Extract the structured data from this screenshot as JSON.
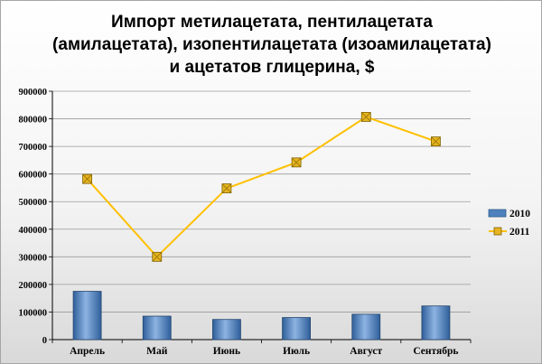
{
  "chart_data": {
    "type": "bar+line",
    "title": [
      "Импорт метилацетата, пентилацетата",
      "(амилацетата), изопентилацетата (изоамилацетата)",
      "и ацетатов глицерина, $"
    ],
    "categories": [
      "Апрель",
      "Май",
      "Июнь",
      "Июль",
      "Август",
      "Сентябрь"
    ],
    "series": [
      {
        "name": "2010",
        "type": "bar",
        "color": "#4f81bd",
        "values": [
          175000,
          85000,
          73000,
          80000,
          92000,
          122000
        ]
      },
      {
        "name": "2011",
        "type": "line",
        "color": "#ffc000",
        "marker_color": "#d4a017",
        "values": [
          582000,
          300000,
          548000,
          642000,
          807000,
          718000
        ]
      }
    ],
    "y_ticks": [
      "0",
      "100000",
      "200000",
      "300000",
      "400000",
      "500000",
      "600000",
      "700000",
      "800000",
      "900000"
    ],
    "ylim": [
      0,
      900000
    ],
    "grid": true,
    "legend_position": "right"
  }
}
